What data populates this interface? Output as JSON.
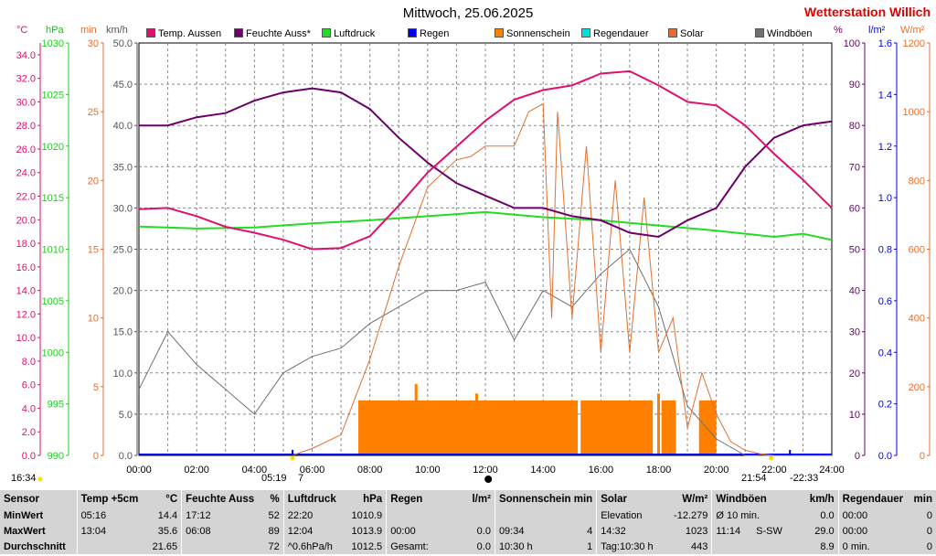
{
  "title": "Mittwoch, 25.06.2025",
  "brand": "Wetterstation Willich",
  "legend": [
    {
      "label": "Temp. Aussen",
      "color": "#e0106e"
    },
    {
      "label": "Feuchte Auss*",
      "color": "#6b006b"
    },
    {
      "label": "Luftdruck",
      "color": "#22dd22"
    },
    {
      "label": "Regen",
      "color": "#0000ee"
    },
    {
      "label": "Sonnenschein",
      "color": "#ff8000"
    },
    {
      "label": "Regendauer",
      "color": "#00e0e0"
    },
    {
      "label": "Solar",
      "color": "#e07030"
    },
    {
      "label": "Windböen",
      "color": "#707070"
    }
  ],
  "units": {
    "temp": "°C",
    "press": "hPa",
    "min": "min",
    "kmh": "km/h",
    "pct": "%",
    "lm2": "l/m²",
    "wm2": "W/m²"
  },
  "markers": {
    "sunrise": "05:19",
    "sunrise_suffix": "7",
    "sunset": "21:54",
    "sunset2": "-22:33",
    "time": "16:34"
  },
  "stats": {
    "headers": {
      "sensor": "Sensor",
      "temp": "Temp +5cm",
      "temp_unit": "°C",
      "feuchte": "Feuchte Auss",
      "feuchte_unit": "%",
      "luftdruck": "Luftdruck",
      "luftdruck_unit": "hPa",
      "regen": "Regen",
      "regen_unit": "l/m²",
      "sonne": "Sonnenschein min",
      "solar": "Solar",
      "solar_unit": "W/m²",
      "wind": "Windböen",
      "wind_unit": "km/h",
      "regendauer": "Regendauer",
      "regendauer_unit": "min"
    },
    "min": {
      "label": "MinWert",
      "temp_t": "05:16",
      "temp_v": "14.4",
      "feu_t": "17:12",
      "feu_v": "52",
      "lu_t": "22:20",
      "lu_v": "1010.9",
      "re_t": "",
      "re_v": "",
      "so_t": "",
      "so_v": "",
      "sol_t": "Elevation",
      "sol_v": "-12.279",
      "wi_t": "Ø 10 min.",
      "wi_v": "0.0",
      "rd_t": "00:00",
      "rd_v": "0"
    },
    "max": {
      "label": "MaxWert",
      "temp_t": "13:04",
      "temp_v": "35.6",
      "feu_t": "06:08",
      "feu_v": "89",
      "lu_t": "12:04",
      "lu_v": "1013.9",
      "re_t": "00:00",
      "re_v": "0.0",
      "so_t": "09:34",
      "so_v": "4",
      "sol_t": "14:32",
      "sol_v": "1023",
      "wi_t": "11:14",
      "wi_d": "S-SW",
      "wi_v": "29.0",
      "rd_t": "00:00",
      "rd_v": "0"
    },
    "avg": {
      "label": "Durchschnitt",
      "temp_t": "",
      "temp_v": "21.65",
      "feu_t": "",
      "feu_v": "72",
      "lu_t": "^0.6hPa/h",
      "lu_v": "1012.5",
      "re_t": "Gesamt:",
      "re_v": "0.0",
      "so_t": "10:30 h",
      "so_v": "1",
      "sol_t": "Tag:10:30 h",
      "sol_v": "443",
      "wi_t": "",
      "wi_v": "8.9",
      "rd_t": "0 min.",
      "rd_v": "0"
    }
  },
  "chart_data": {
    "type": "line",
    "title": "Mittwoch, 25.06.2025",
    "x_ticks": [
      "00:00",
      "02:00",
      "04:00",
      "06:00",
      "08:00",
      "10:00",
      "12:00",
      "14:00",
      "16:00",
      "18:00",
      "20:00",
      "22:00",
      "24:00"
    ],
    "axes": {
      "temp": {
        "unit": "°C",
        "range": [
          0,
          35
        ],
        "ticks": [
          "0.0",
          "2.0",
          "4.0",
          "6.0",
          "8.0",
          "10.0",
          "12.0",
          "14.0",
          "16.0",
          "18.0",
          "20.0",
          "22.0",
          "24.0",
          "26.0",
          "28.0",
          "30.0",
          "32.0",
          "34.0"
        ]
      },
      "pressure": {
        "unit": "hPa",
        "range": [
          990,
          1030
        ],
        "ticks": [
          "990",
          "995",
          "1000",
          "1005",
          "1010",
          "1015",
          "1020",
          "1025",
          "1030"
        ]
      },
      "minutes": {
        "unit": "min",
        "range": [
          0,
          30
        ],
        "ticks": [
          "0",
          "5",
          "10",
          "15",
          "20",
          "25",
          "30"
        ]
      },
      "kmh": {
        "unit": "km/h",
        "range": [
          0,
          50
        ],
        "ticks": [
          "0.0",
          "5.0",
          "10.0",
          "15.0",
          "20.0",
          "25.0",
          "30.0",
          "35.0",
          "40.0",
          "45.0",
          "50.0"
        ]
      },
      "humidity": {
        "unit": "%",
        "range": [
          0,
          100
        ],
        "ticks": [
          "0",
          "10",
          "20",
          "30",
          "40",
          "50",
          "60",
          "70",
          "80",
          "90",
          "100"
        ]
      },
      "rain": {
        "unit": "l/m²",
        "range": [
          0,
          1.6
        ],
        "ticks": [
          "0.0",
          "0.2",
          "0.4",
          "0.6",
          "0.8",
          "1.0",
          "1.2",
          "1.4",
          "1.6"
        ]
      },
      "solar": {
        "unit": "W/m²",
        "range": [
          0,
          1200
        ],
        "ticks": [
          "0",
          "200",
          "400",
          "600",
          "800",
          "1000",
          "1200"
        ]
      }
    },
    "series": [
      {
        "name": "Temp. Aussen",
        "axis": "temp",
        "x": [
          0,
          1,
          2,
          3,
          4,
          5,
          6,
          7,
          8,
          9,
          10,
          11,
          12,
          13,
          14,
          15,
          16,
          17,
          18,
          19,
          20,
          21,
          22,
          23,
          24
        ],
        "y": [
          20.9,
          21.0,
          20.3,
          19.4,
          18.9,
          18.3,
          17.5,
          17.6,
          18.6,
          21.2,
          24.0,
          26.2,
          28.4,
          30.2,
          31.0,
          31.4,
          32.4,
          32.6,
          31.4,
          30.0,
          29.7,
          28.0,
          25.6,
          23.4,
          21.0
        ]
      },
      {
        "name": "Feuchte Auss*",
        "axis": "humidity",
        "x": [
          0,
          1,
          2,
          3,
          4,
          5,
          6,
          7,
          8,
          9,
          10,
          11,
          12,
          13,
          14,
          15,
          16,
          17,
          18,
          19,
          20,
          21,
          22,
          23,
          24
        ],
        "y": [
          80,
          80,
          82,
          83,
          86,
          88,
          89,
          88,
          84,
          77,
          71,
          66,
          63,
          60,
          60,
          58,
          57,
          54,
          53,
          57,
          60,
          70,
          77,
          80,
          81
        ]
      },
      {
        "name": "Luftdruck",
        "axis": "pressure",
        "x": [
          0,
          2,
          4,
          6,
          8,
          10,
          12,
          14,
          16,
          18,
          20,
          22,
          23,
          24
        ],
        "y": [
          1012.2,
          1012.0,
          1012.1,
          1012.5,
          1012.8,
          1013.2,
          1013.6,
          1013.1,
          1012.8,
          1012.3,
          1011.8,
          1011.2,
          1011.5,
          1010.9
        ]
      },
      {
        "name": "Solar",
        "axis": "solar",
        "x": [
          5.3,
          6,
          7,
          8,
          9,
          10,
          11,
          11.5,
          12,
          13,
          13.5,
          14,
          14.3,
          14.5,
          15,
          15.5,
          16,
          16.5,
          17,
          17.5,
          18,
          18.5,
          19,
          19.5,
          20,
          20.5,
          21,
          21.5,
          22
        ],
        "y": [
          0,
          20,
          60,
          280,
          550,
          780,
          860,
          870,
          900,
          900,
          1000,
          1023,
          400,
          1000,
          400,
          900,
          300,
          800,
          300,
          750,
          300,
          400,
          80,
          240,
          120,
          40,
          15,
          5,
          0
        ]
      },
      {
        "name": "Windböen",
        "axis": "kmh",
        "x": [
          0,
          1,
          2,
          3,
          4,
          5,
          6,
          7,
          8,
          9,
          10,
          11,
          12,
          13,
          14,
          15,
          16,
          17,
          18,
          19,
          20,
          21,
          22,
          23,
          24
        ],
        "y": [
          8,
          15,
          11,
          8,
          5,
          10,
          12,
          13,
          16,
          18,
          20,
          20,
          21,
          14,
          20,
          18,
          22,
          25,
          18,
          6,
          2,
          0,
          0,
          0,
          0
        ]
      }
    ],
    "sunshine_blocks": [
      [
        7.6,
        15.2
      ],
      [
        15.3,
        17.8
      ],
      [
        18.1,
        18.6
      ],
      [
        19.4,
        20.0
      ]
    ],
    "sunshine_peaks": [
      [
        9.6,
        5.2
      ],
      [
        11.7,
        4.5
      ],
      [
        18.0,
        4.5
      ]
    ],
    "grid": true,
    "legend_position": "top"
  }
}
